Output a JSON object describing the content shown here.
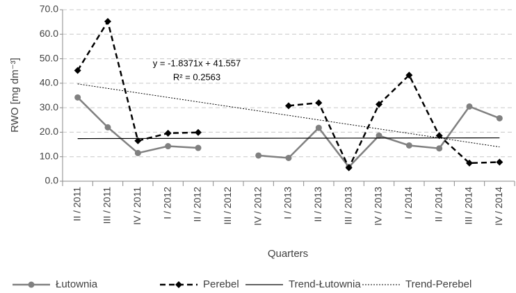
{
  "chart_data": {
    "type": "line",
    "y_label": "RWO [mg dm⁻³]",
    "x_label": "Quarters",
    "annotations": [
      "y = -1.8371x + 41.557",
      "R² = 0.2563"
    ],
    "categories": [
      "II / 2011",
      "III / 2011",
      "IV / 2011",
      "I / 2012",
      "II / 2012",
      "III / 2012",
      "IV / 2012",
      "I / 2013",
      "II / 2013",
      "III / 2013",
      "IV / 2013",
      "I / 2014",
      "II / 2014",
      "III / 2014",
      "IV / 2014"
    ],
    "series": [
      {
        "name": "Łutownia",
        "color": "#808080",
        "line_style": "solid",
        "marker": "circle",
        "values": [
          34.2,
          22.0,
          11.5,
          14.3,
          13.6,
          null,
          10.5,
          9.5,
          21.8,
          5.8,
          18.6,
          14.6,
          13.4,
          30.5,
          25.7
        ]
      },
      {
        "name": "Perebel",
        "color": "#000000",
        "line_style": "dashed",
        "marker": "diamond",
        "values": [
          45.2,
          65.2,
          16.5,
          19.6,
          19.9,
          null,
          null,
          30.8,
          32.0,
          5.5,
          31.4,
          43.3,
          18.6,
          7.4,
          7.8
        ]
      },
      {
        "name": "Trend-Łutownia",
        "color": "#000000",
        "line_style": "thin",
        "marker": null,
        "values": [
          17.4,
          17.42,
          17.44,
          17.46,
          17.49,
          17.51,
          17.53,
          17.55,
          17.57,
          17.59,
          17.61,
          17.64,
          17.66,
          17.68,
          17.7
        ]
      },
      {
        "name": "Trend-Perebel",
        "color": "#000000",
        "line_style": "dotted",
        "marker": null,
        "values": [
          39.72,
          37.88,
          36.05,
          34.21,
          32.37,
          30.54,
          28.7,
          26.87,
          25.02,
          23.19,
          21.35,
          19.52,
          17.68,
          15.84,
          14.0
        ]
      }
    ],
    "ylim": [
      0,
      70
    ],
    "yticks": [
      {
        "value": 0,
        "label": "0.0"
      },
      {
        "value": 10,
        "label": "10.0"
      },
      {
        "value": 20,
        "label": "20.0"
      },
      {
        "value": 30,
        "label": "30.0"
      },
      {
        "value": 40,
        "label": "40.0"
      },
      {
        "value": 50,
        "label": "50.0"
      },
      {
        "value": 60,
        "label": "60.0"
      },
      {
        "value": 70,
        "label": "70.0"
      }
    ],
    "grid": true,
    "legend": "bottom"
  }
}
